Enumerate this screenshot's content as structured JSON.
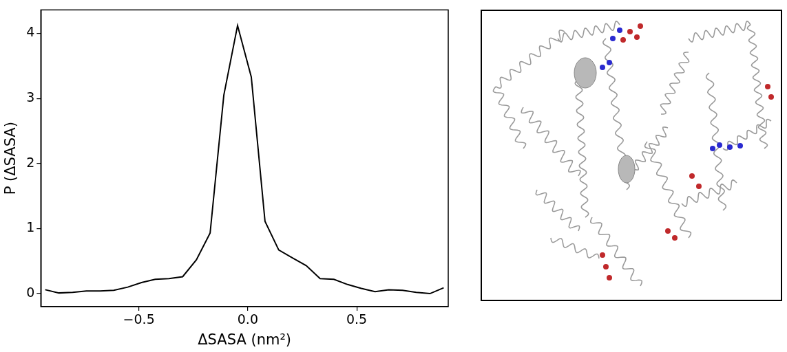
{
  "chart_data": {
    "type": "line",
    "x_label": "ΔSASA (nm²)",
    "y_label": "P (ΔSASA)",
    "x": [
      -0.93,
      -0.867,
      -0.804,
      -0.741,
      -0.678,
      -0.615,
      -0.551,
      -0.488,
      -0.425,
      -0.362,
      -0.299,
      -0.236,
      -0.173,
      -0.11,
      -0.047,
      0.016,
      0.079,
      0.142,
      0.205,
      0.268,
      0.332,
      0.395,
      0.458,
      0.521,
      0.584,
      0.647,
      0.71,
      0.773,
      0.836,
      0.899
    ],
    "values": [
      0.06,
      0.01,
      0.02,
      0.04,
      0.04,
      0.05,
      0.1,
      0.17,
      0.22,
      0.23,
      0.26,
      0.52,
      0.93,
      3.05,
      4.12,
      3.33,
      1.11,
      0.67,
      0.55,
      0.43,
      0.23,
      0.22,
      0.14,
      0.08,
      0.03,
      0.06,
      0.05,
      0.02,
      0.0,
      0.09
    ],
    "color": "#000000",
    "marker": "none",
    "xlim": [
      -0.95,
      0.92
    ],
    "ylim": [
      -0.2,
      4.36
    ],
    "xticks": [
      {
        "value": -0.5,
        "label": "−0.5"
      },
      {
        "value": 0,
        "label": "0.0"
      },
      {
        "value": 0.5,
        "label": "0.5"
      }
    ],
    "yticks": [
      0,
      1,
      2,
      3,
      4
    ],
    "grid": false
  }
}
